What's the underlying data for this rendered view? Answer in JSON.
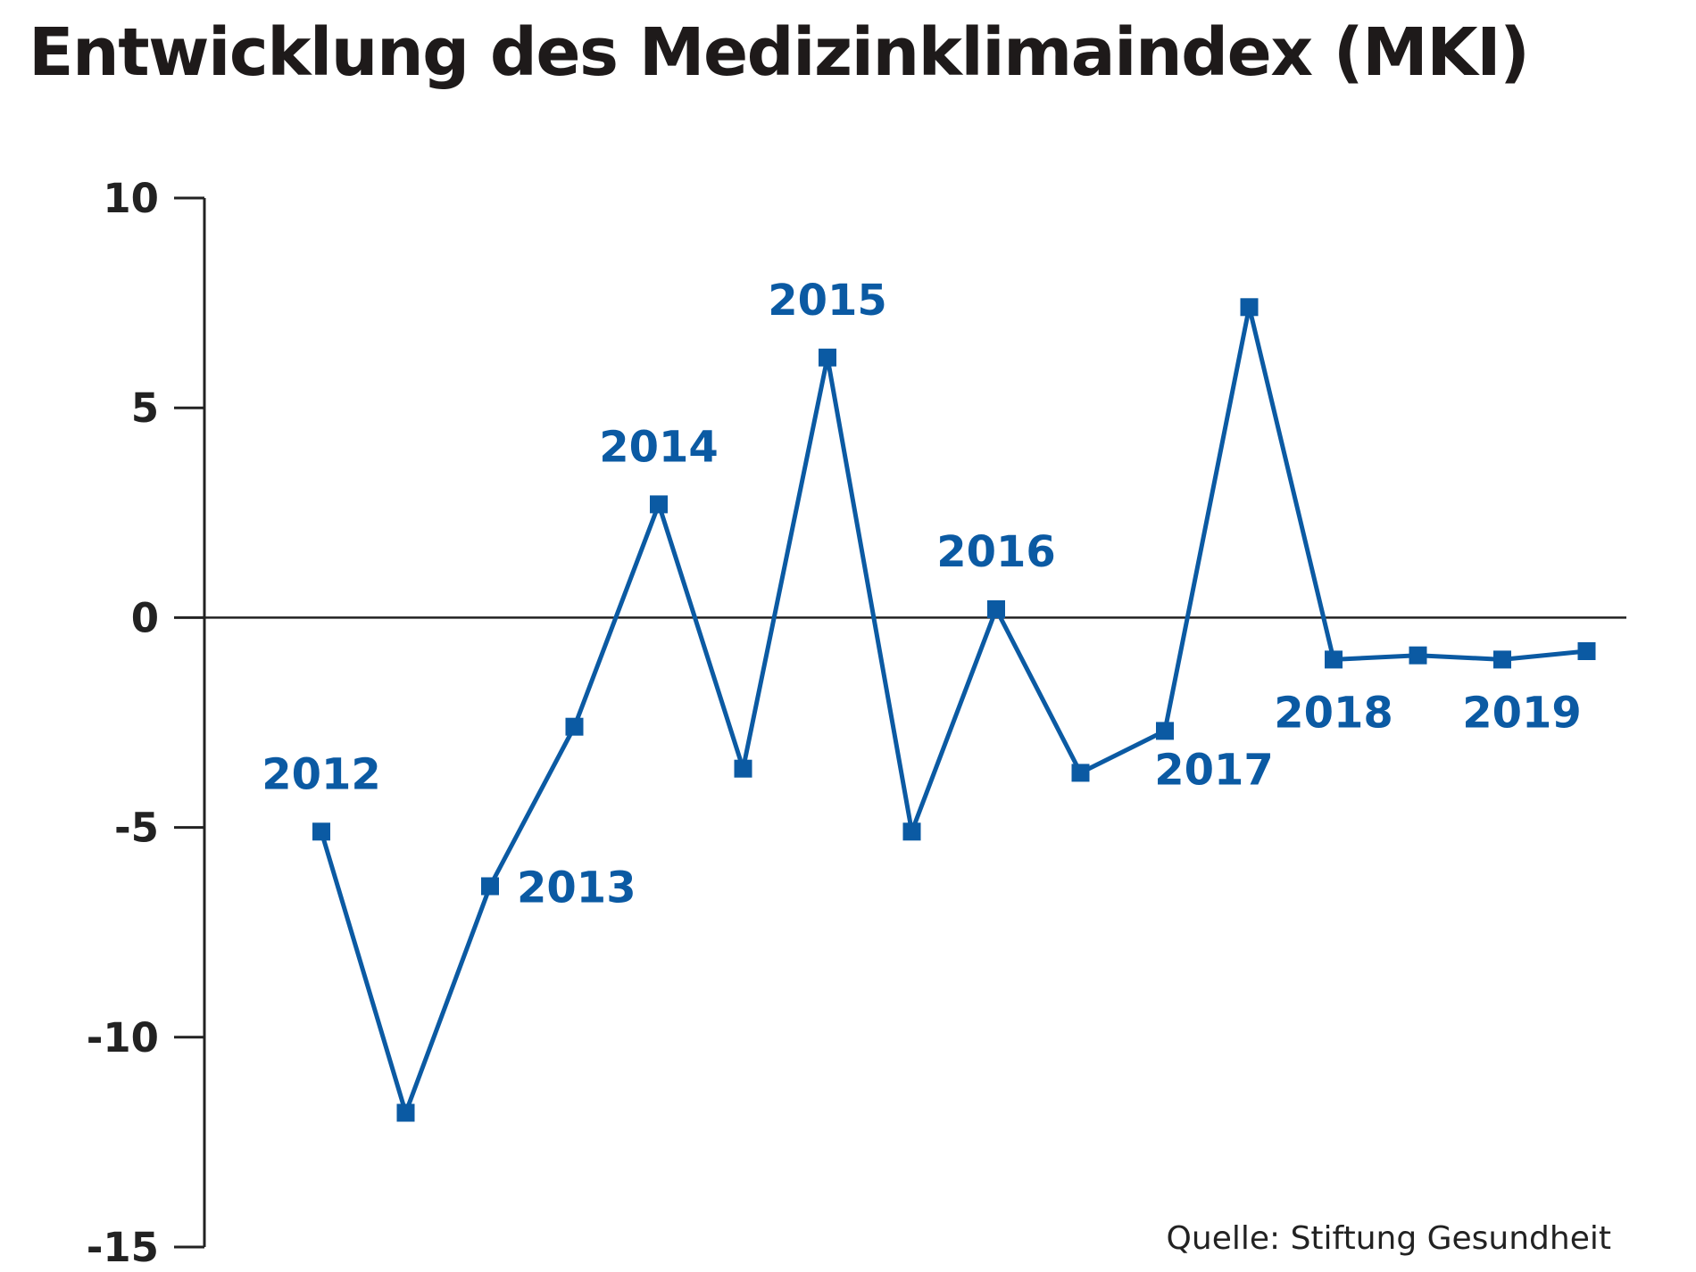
{
  "colors": {
    "series": "#0b5aa3",
    "axis": "#222222",
    "title": "#1e1a1a"
  },
  "source": "Quelle:  Stiftung Gesundheit",
  "chart_data": {
    "type": "line",
    "title": "Entwicklung des Medizinklimaindex (MKI)",
    "xlabel": "",
    "ylabel": "",
    "ylim": [
      -15,
      10
    ],
    "yticks": [
      "10",
      "5",
      "0",
      "-5",
      "-10",
      "-15"
    ],
    "grid": false,
    "legend": "none",
    "series": [
      {
        "values": [
          -5.1,
          -11.8,
          -6.4,
          -2.6,
          2.7,
          -3.6,
          6.2,
          -5.1,
          0.2,
          -3.7,
          -2.7,
          7.4,
          -1.0,
          -0.9,
          -1.0,
          -0.8
        ]
      }
    ],
    "point_labels": [
      {
        "index": 0,
        "text": "2012"
      },
      {
        "index": 2,
        "text": "2013"
      },
      {
        "index": 4,
        "text": "2014"
      },
      {
        "index": 6,
        "text": "2015"
      },
      {
        "index": 8,
        "text": "2016"
      },
      {
        "index": 10,
        "text": "2017"
      },
      {
        "index": 12,
        "text": "2018"
      },
      {
        "index": 14,
        "text": "2019"
      }
    ]
  }
}
